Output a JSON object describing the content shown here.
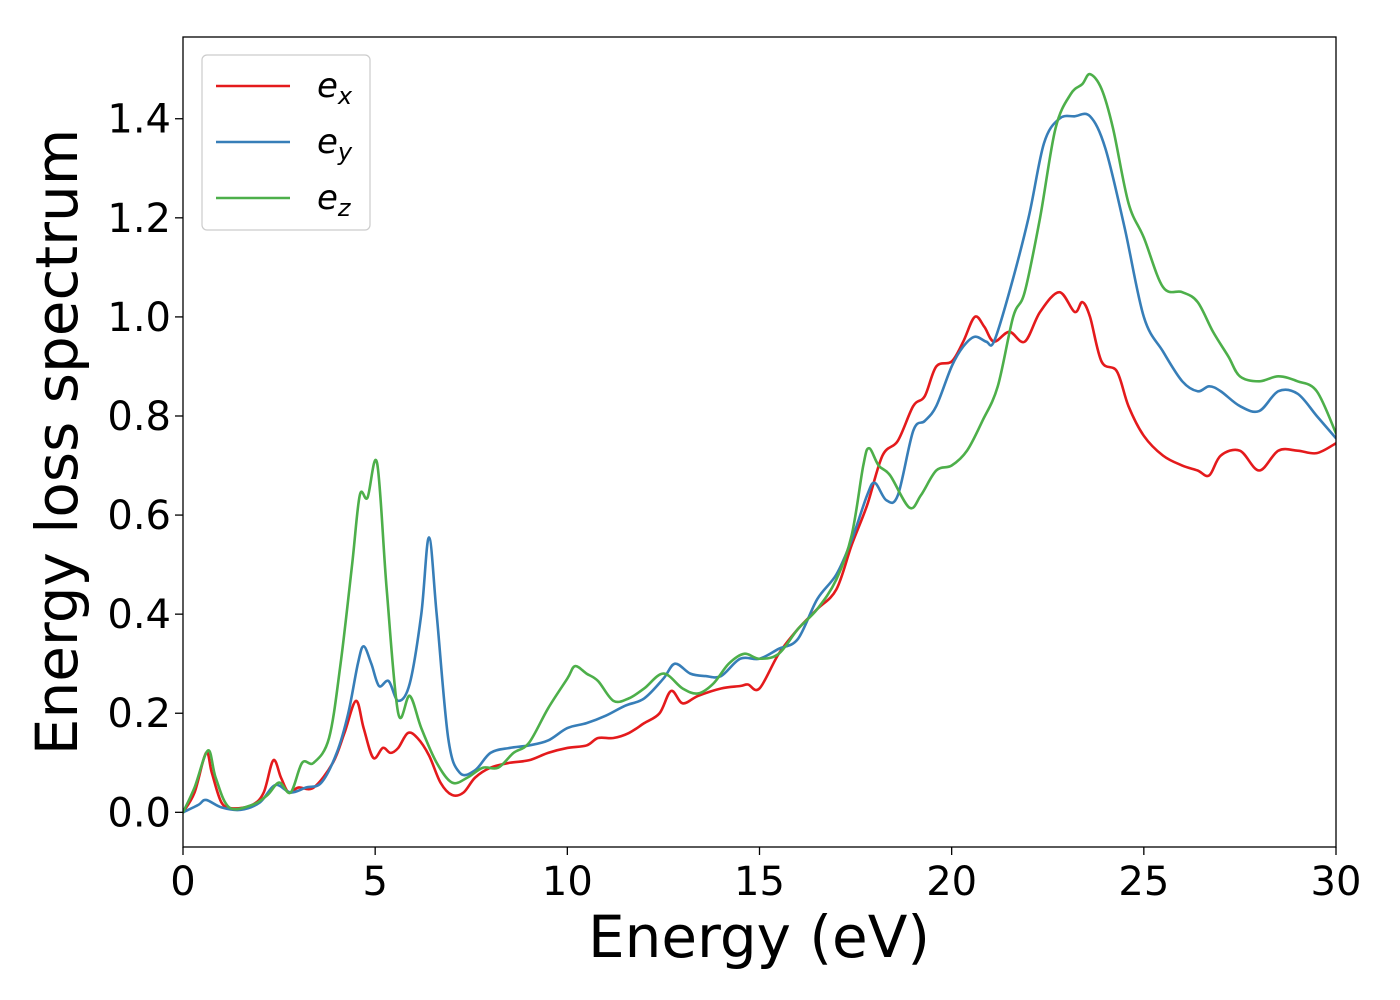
{
  "chart_data": {
    "type": "line",
    "title": "",
    "xlabel": "Energy (eV)",
    "ylabel": "Energy loss spectrum",
    "xlim": [
      0,
      30
    ],
    "ylim": [
      -0.07,
      1.565
    ],
    "xticks": [
      0,
      5,
      10,
      15,
      20,
      25,
      30
    ],
    "yticks": [
      0.0,
      0.2,
      0.4,
      0.6,
      0.8,
      1.0,
      1.2,
      1.4
    ],
    "xtick_labels": [
      "0",
      "5",
      "10",
      "15",
      "20",
      "25",
      "30"
    ],
    "ytick_labels": [
      "0.0",
      "0.2",
      "0.4",
      "0.6",
      "0.8",
      "1.0",
      "1.2",
      "1.4"
    ],
    "grid": false,
    "legend_position": "top-left",
    "series": [
      {
        "name": "e_x",
        "label_base": "e",
        "label_sub": "x",
        "color": "#e41a1c",
        "points": [
          [
            0,
            0
          ],
          [
            0.3,
            0.04
          ],
          [
            0.6,
            0.12
          ],
          [
            0.75,
            0.08
          ],
          [
            1.0,
            0.02
          ],
          [
            1.3,
            0.008
          ],
          [
            1.8,
            0.015
          ],
          [
            2.1,
            0.04
          ],
          [
            2.35,
            0.105
          ],
          [
            2.55,
            0.07
          ],
          [
            2.75,
            0.04
          ],
          [
            3.0,
            0.05
          ],
          [
            3.4,
            0.05
          ],
          [
            3.9,
            0.1
          ],
          [
            4.2,
            0.16
          ],
          [
            4.5,
            0.225
          ],
          [
            4.7,
            0.17
          ],
          [
            4.95,
            0.11
          ],
          [
            5.2,
            0.13
          ],
          [
            5.4,
            0.12
          ],
          [
            5.6,
            0.13
          ],
          [
            5.85,
            0.16
          ],
          [
            6.1,
            0.15
          ],
          [
            6.4,
            0.115
          ],
          [
            6.7,
            0.06
          ],
          [
            7.0,
            0.035
          ],
          [
            7.3,
            0.04
          ],
          [
            7.6,
            0.07
          ],
          [
            8.0,
            0.09
          ],
          [
            8.5,
            0.1
          ],
          [
            9.0,
            0.105
          ],
          [
            9.5,
            0.12
          ],
          [
            10.0,
            0.13
          ],
          [
            10.5,
            0.135
          ],
          [
            10.8,
            0.15
          ],
          [
            11.2,
            0.15
          ],
          [
            11.6,
            0.16
          ],
          [
            12.0,
            0.18
          ],
          [
            12.4,
            0.2
          ],
          [
            12.7,
            0.245
          ],
          [
            13.0,
            0.22
          ],
          [
            13.4,
            0.235
          ],
          [
            14.0,
            0.25
          ],
          [
            14.5,
            0.255
          ],
          [
            14.7,
            0.258
          ],
          [
            15.0,
            0.25
          ],
          [
            15.5,
            0.32
          ],
          [
            16.0,
            0.37
          ],
          [
            16.5,
            0.41
          ],
          [
            17.0,
            0.45
          ],
          [
            17.4,
            0.54
          ],
          [
            17.8,
            0.62
          ],
          [
            18.2,
            0.72
          ],
          [
            18.6,
            0.75
          ],
          [
            19.0,
            0.82
          ],
          [
            19.3,
            0.84
          ],
          [
            19.6,
            0.9
          ],
          [
            20.0,
            0.91
          ],
          [
            20.3,
            0.95
          ],
          [
            20.6,
            1.0
          ],
          [
            20.85,
            0.98
          ],
          [
            21.1,
            0.95
          ],
          [
            21.5,
            0.97
          ],
          [
            21.9,
            0.95
          ],
          [
            22.3,
            1.01
          ],
          [
            22.8,
            1.05
          ],
          [
            23.2,
            1.01
          ],
          [
            23.4,
            1.03
          ],
          [
            23.6,
            1.0
          ],
          [
            23.9,
            0.91
          ],
          [
            24.3,
            0.89
          ],
          [
            24.6,
            0.82
          ],
          [
            25.0,
            0.76
          ],
          [
            25.5,
            0.72
          ],
          [
            26.0,
            0.7
          ],
          [
            26.4,
            0.69
          ],
          [
            26.7,
            0.68
          ],
          [
            27.0,
            0.72
          ],
          [
            27.5,
            0.73
          ],
          [
            28.0,
            0.69
          ],
          [
            28.5,
            0.73
          ],
          [
            29.0,
            0.73
          ],
          [
            29.5,
            0.725
          ],
          [
            30.0,
            0.745
          ]
        ]
      },
      {
        "name": "e_y",
        "label_base": "e",
        "label_sub": "y",
        "color": "#377eb8",
        "points": [
          [
            0,
            0
          ],
          [
            0.4,
            0.015
          ],
          [
            0.6,
            0.025
          ],
          [
            1.0,
            0.01
          ],
          [
            1.5,
            0.005
          ],
          [
            2.0,
            0.02
          ],
          [
            2.4,
            0.055
          ],
          [
            2.8,
            0.04
          ],
          [
            3.2,
            0.05
          ],
          [
            3.6,
            0.06
          ],
          [
            4.0,
            0.12
          ],
          [
            4.3,
            0.2
          ],
          [
            4.55,
            0.3
          ],
          [
            4.7,
            0.335
          ],
          [
            4.9,
            0.3
          ],
          [
            5.1,
            0.255
          ],
          [
            5.35,
            0.265
          ],
          [
            5.6,
            0.225
          ],
          [
            5.9,
            0.26
          ],
          [
            6.2,
            0.4
          ],
          [
            6.4,
            0.555
          ],
          [
            6.6,
            0.4
          ],
          [
            6.9,
            0.15
          ],
          [
            7.2,
            0.08
          ],
          [
            7.6,
            0.085
          ],
          [
            8.0,
            0.12
          ],
          [
            8.5,
            0.13
          ],
          [
            9.0,
            0.135
          ],
          [
            9.5,
            0.145
          ],
          [
            10.0,
            0.17
          ],
          [
            10.5,
            0.18
          ],
          [
            11.0,
            0.195
          ],
          [
            11.5,
            0.215
          ],
          [
            12.0,
            0.23
          ],
          [
            12.5,
            0.27
          ],
          [
            12.8,
            0.3
          ],
          [
            13.2,
            0.28
          ],
          [
            13.6,
            0.275
          ],
          [
            14.0,
            0.275
          ],
          [
            14.5,
            0.31
          ],
          [
            15.0,
            0.31
          ],
          [
            15.5,
            0.33
          ],
          [
            16.0,
            0.35
          ],
          [
            16.5,
            0.43
          ],
          [
            17.0,
            0.48
          ],
          [
            17.4,
            0.55
          ],
          [
            17.8,
            0.64
          ],
          [
            18.0,
            0.665
          ],
          [
            18.3,
            0.63
          ],
          [
            18.6,
            0.64
          ],
          [
            19.0,
            0.77
          ],
          [
            19.3,
            0.79
          ],
          [
            19.6,
            0.82
          ],
          [
            20.0,
            0.9
          ],
          [
            20.3,
            0.94
          ],
          [
            20.6,
            0.96
          ],
          [
            20.9,
            0.95
          ],
          [
            21.1,
            0.95
          ],
          [
            21.5,
            1.05
          ],
          [
            22.0,
            1.2
          ],
          [
            22.4,
            1.35
          ],
          [
            22.8,
            1.4
          ],
          [
            23.2,
            1.405
          ],
          [
            23.6,
            1.405
          ],
          [
            24.0,
            1.34
          ],
          [
            24.5,
            1.18
          ],
          [
            25.0,
            1.0
          ],
          [
            25.5,
            0.93
          ],
          [
            26.0,
            0.87
          ],
          [
            26.4,
            0.85
          ],
          [
            26.7,
            0.86
          ],
          [
            27.0,
            0.85
          ],
          [
            27.5,
            0.82
          ],
          [
            28.0,
            0.81
          ],
          [
            28.5,
            0.85
          ],
          [
            29.0,
            0.845
          ],
          [
            29.5,
            0.8
          ],
          [
            30.0,
            0.755
          ]
        ]
      },
      {
        "name": "e_z",
        "label_base": "e",
        "label_sub": "z",
        "color": "#4daf4a",
        "points": [
          [
            0,
            0
          ],
          [
            0.3,
            0.05
          ],
          [
            0.65,
            0.125
          ],
          [
            0.85,
            0.07
          ],
          [
            1.2,
            0.01
          ],
          [
            1.8,
            0.015
          ],
          [
            2.2,
            0.035
          ],
          [
            2.5,
            0.06
          ],
          [
            2.8,
            0.04
          ],
          [
            3.1,
            0.1
          ],
          [
            3.4,
            0.1
          ],
          [
            3.8,
            0.15
          ],
          [
            4.1,
            0.3
          ],
          [
            4.4,
            0.5
          ],
          [
            4.6,
            0.64
          ],
          [
            4.8,
            0.635
          ],
          [
            5.05,
            0.705
          ],
          [
            5.3,
            0.45
          ],
          [
            5.6,
            0.2
          ],
          [
            5.9,
            0.235
          ],
          [
            6.2,
            0.17
          ],
          [
            6.6,
            0.1
          ],
          [
            7.0,
            0.06
          ],
          [
            7.4,
            0.07
          ],
          [
            7.8,
            0.09
          ],
          [
            8.2,
            0.09
          ],
          [
            8.6,
            0.12
          ],
          [
            9.0,
            0.14
          ],
          [
            9.5,
            0.21
          ],
          [
            10.0,
            0.27
          ],
          [
            10.2,
            0.295
          ],
          [
            10.5,
            0.28
          ],
          [
            10.8,
            0.265
          ],
          [
            11.2,
            0.225
          ],
          [
            11.6,
            0.23
          ],
          [
            12.0,
            0.25
          ],
          [
            12.5,
            0.28
          ],
          [
            13.0,
            0.25
          ],
          [
            13.4,
            0.24
          ],
          [
            13.8,
            0.26
          ],
          [
            14.2,
            0.3
          ],
          [
            14.6,
            0.32
          ],
          [
            15.0,
            0.31
          ],
          [
            15.5,
            0.32
          ],
          [
            16.0,
            0.37
          ],
          [
            16.5,
            0.41
          ],
          [
            17.0,
            0.47
          ],
          [
            17.4,
            0.56
          ],
          [
            17.7,
            0.7
          ],
          [
            17.85,
            0.735
          ],
          [
            18.1,
            0.7
          ],
          [
            18.4,
            0.68
          ],
          [
            18.9,
            0.615
          ],
          [
            19.2,
            0.64
          ],
          [
            19.6,
            0.69
          ],
          [
            20.0,
            0.7
          ],
          [
            20.4,
            0.73
          ],
          [
            20.8,
            0.79
          ],
          [
            21.2,
            0.86
          ],
          [
            21.6,
            1.0
          ],
          [
            21.9,
            1.05
          ],
          [
            22.3,
            1.2
          ],
          [
            22.7,
            1.38
          ],
          [
            23.1,
            1.45
          ],
          [
            23.4,
            1.47
          ],
          [
            23.6,
            1.49
          ],
          [
            23.9,
            1.46
          ],
          [
            24.2,
            1.38
          ],
          [
            24.6,
            1.23
          ],
          [
            25.0,
            1.16
          ],
          [
            25.5,
            1.06
          ],
          [
            26.0,
            1.05
          ],
          [
            26.4,
            1.03
          ],
          [
            26.8,
            0.97
          ],
          [
            27.2,
            0.92
          ],
          [
            27.5,
            0.88
          ],
          [
            28.0,
            0.87
          ],
          [
            28.5,
            0.88
          ],
          [
            29.0,
            0.87
          ],
          [
            29.5,
            0.85
          ],
          [
            30.0,
            0.765
          ]
        ]
      }
    ]
  }
}
